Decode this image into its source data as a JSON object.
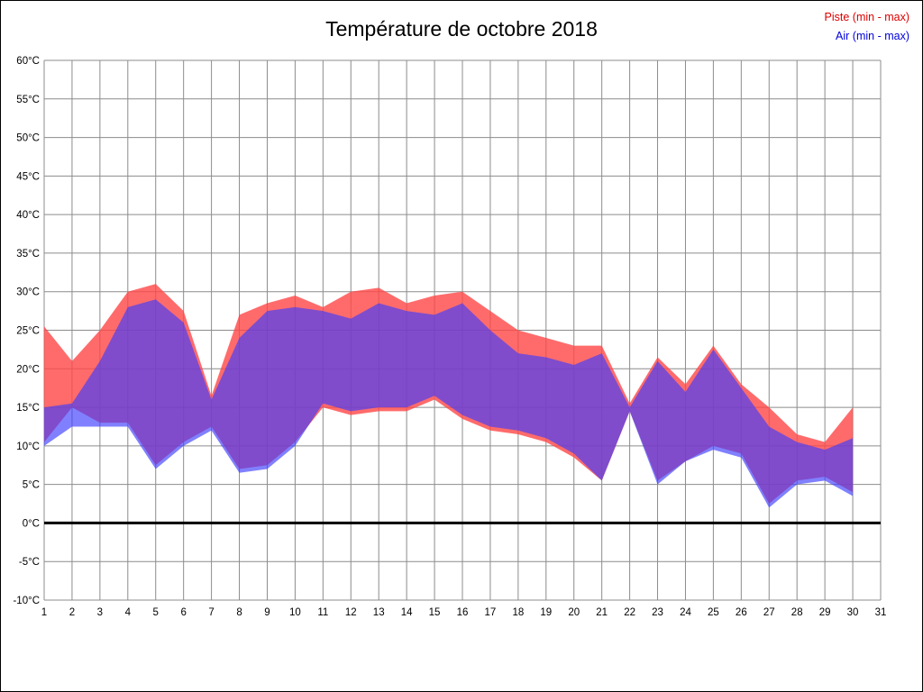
{
  "title": "Température de octobre 2018",
  "legend": [
    {
      "label": "Piste (min - max)",
      "color": "#dd0000"
    },
    {
      "label": "Air (min - max)",
      "color": "#0000dd"
    }
  ],
  "chart_data": {
    "type": "area",
    "title": "Température de octobre 2018",
    "x_label": "",
    "y_label": "",
    "y_unit": "°C",
    "ylim": [
      -10,
      60
    ],
    "y_tick_step": 5,
    "x_ticks": [
      1,
      2,
      3,
      4,
      5,
      6,
      7,
      8,
      9,
      10,
      11,
      12,
      13,
      14,
      15,
      16,
      17,
      18,
      19,
      20,
      21,
      22,
      23,
      24,
      25,
      26,
      27,
      28,
      29,
      30,
      31
    ],
    "days": [
      1,
      2,
      3,
      4,
      5,
      6,
      7,
      8,
      9,
      10,
      11,
      12,
      13,
      14,
      15,
      16,
      17,
      18,
      19,
      20,
      21,
      22,
      23,
      24,
      25,
      26,
      27,
      28,
      29,
      30
    ],
    "grid": true,
    "zero_line": true,
    "legend_position": "top-right",
    "series": [
      {
        "name": "Piste (min - max)",
        "fill": "#ff4646",
        "opacity": 0.8,
        "max": [
          25.5,
          21,
          25,
          30,
          31,
          27.5,
          16.5,
          27,
          28.5,
          29.5,
          28,
          30,
          30.5,
          28.5,
          29.5,
          30,
          27.5,
          25,
          24,
          23,
          23,
          15.5,
          21.5,
          18,
          23,
          18,
          15,
          11.5,
          10.5,
          15
        ],
        "min": [
          10.5,
          15,
          13,
          13,
          7.5,
          10.5,
          12.5,
          7,
          7.5,
          10.5,
          15,
          14,
          14.5,
          14.5,
          16,
          13.5,
          12,
          11.5,
          10.5,
          8.5,
          5.5,
          14.5,
          5.5,
          8,
          10,
          9,
          2.5,
          5.5,
          6,
          4
        ]
      },
      {
        "name": "Air (min - max)",
        "fill": "#3c3cff",
        "opacity": 0.65,
        "max": [
          15,
          15.5,
          21,
          28,
          29,
          26,
          16,
          24,
          27.5,
          28,
          27.5,
          26.5,
          28.5,
          27.5,
          27,
          28.5,
          25,
          22,
          21.5,
          20.5,
          22,
          15,
          21,
          17,
          22.5,
          17.5,
          12.5,
          10.5,
          9.5,
          11
        ],
        "min": [
          10,
          12.5,
          12.5,
          12.5,
          7,
          10,
          12,
          6.5,
          7,
          10,
          15.5,
          14.5,
          15,
          15,
          16.5,
          14,
          12.5,
          12,
          11,
          9,
          5.5,
          14.5,
          5,
          8,
          9.5,
          8.5,
          2,
          5,
          5.5,
          3.5
        ]
      }
    ],
    "grid_color": "#8c8c8c",
    "zero_line_color": "#000000"
  }
}
